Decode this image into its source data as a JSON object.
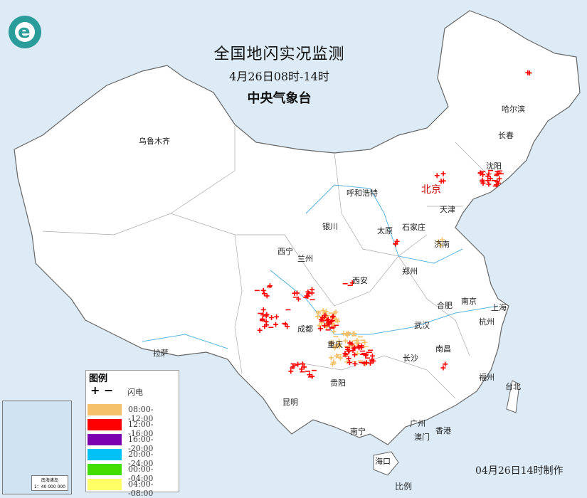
{
  "header": {
    "title": "全国地闪实况监测",
    "period": "4月26日08时-14时",
    "issuer": "中央气象台"
  },
  "logo": {
    "icon": "cma-logo"
  },
  "cities": [
    {
      "name": "乌鲁木齐",
      "capital": false
    },
    {
      "name": "哈尔滨",
      "capital": false
    },
    {
      "name": "长春",
      "capital": false
    },
    {
      "name": "沈阳",
      "capital": false
    },
    {
      "name": "北京",
      "capital": true
    },
    {
      "name": "天津",
      "capital": false
    },
    {
      "name": "呼和浩特",
      "capital": false
    },
    {
      "name": "石家庄",
      "capital": false
    },
    {
      "name": "太原",
      "capital": false
    },
    {
      "name": "银川",
      "capital": false
    },
    {
      "name": "济南",
      "capital": false
    },
    {
      "name": "西宁",
      "capital": false
    },
    {
      "name": "兰州",
      "capital": false
    },
    {
      "name": "郑州",
      "capital": false
    },
    {
      "name": "西安",
      "capital": false
    },
    {
      "name": "合肥",
      "capital": false
    },
    {
      "name": "南京",
      "capital": false
    },
    {
      "name": "上海",
      "capital": false
    },
    {
      "name": "武汉",
      "capital": false
    },
    {
      "name": "杭州",
      "capital": false
    },
    {
      "name": "成都",
      "capital": false
    },
    {
      "name": "重庆",
      "capital": false
    },
    {
      "name": "长沙",
      "capital": false
    },
    {
      "name": "南昌",
      "capital": false
    },
    {
      "name": "拉萨",
      "capital": false
    },
    {
      "name": "贵阳",
      "capital": false
    },
    {
      "name": "福州",
      "capital": false
    },
    {
      "name": "台北",
      "capital": false
    },
    {
      "name": "昆明",
      "capital": false
    },
    {
      "name": "南宁",
      "capital": false
    },
    {
      "name": "广州",
      "capital": false
    },
    {
      "name": "澳门",
      "capital": false
    },
    {
      "name": "香港",
      "capital": false
    },
    {
      "name": "海口",
      "capital": false
    }
  ],
  "legend": {
    "title": "图例",
    "symbols": "+ −",
    "symbol_label": "闪电",
    "items": [
      {
        "label": "08:00--12:00",
        "color": "#f5c26b"
      },
      {
        "label": "12:00--16:00",
        "color": "#ff0000"
      },
      {
        "label": "16:00--20:00",
        "color": "#7a00b0"
      },
      {
        "label": "20:00--24:00",
        "color": "#00c0f5"
      },
      {
        "label": "00:00--04:00",
        "color": "#44dd00"
      },
      {
        "label": "04:00--08:00",
        "color": "#ffff66"
      }
    ]
  },
  "inset": {
    "title": "南海诸岛",
    "scale": "1：40 000 000"
  },
  "footer": {
    "made": "04月26日14时制作",
    "scale_label": "比例"
  },
  "colors": {
    "land": "#ffffff",
    "sea": "#dcebf6",
    "border": "#888888",
    "river": "#5ab4e0"
  }
}
